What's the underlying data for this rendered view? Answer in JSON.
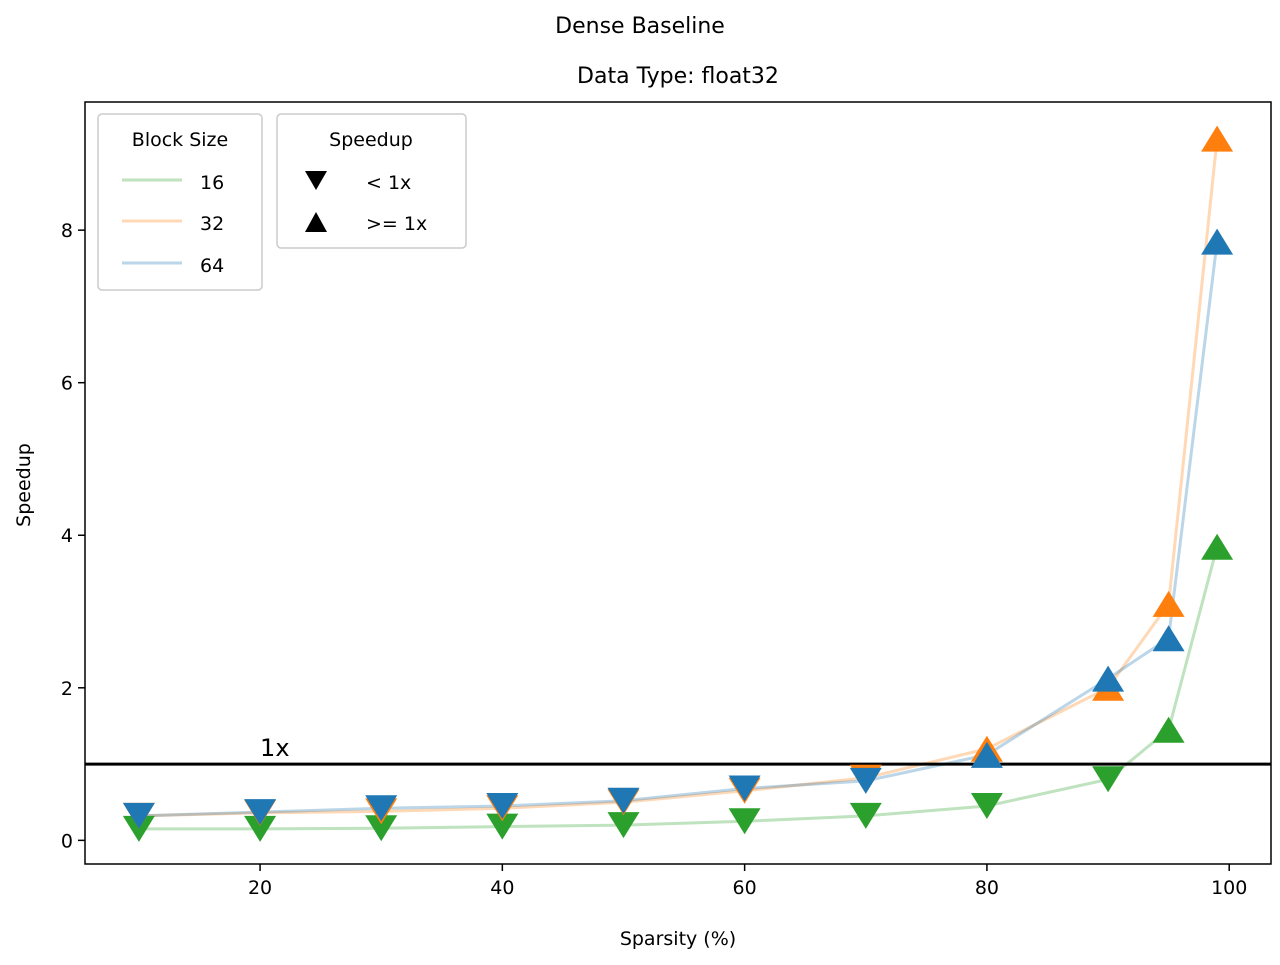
{
  "chart_data": {
    "type": "line",
    "suptitle": "Dense Baseline",
    "title": "Data Type: float32",
    "xlabel": "Sparsity (%)",
    "ylabel": "Speedup",
    "xlim": [
      5.55,
      103.45
    ],
    "ylim": [
      -0.31,
      9.68
    ],
    "xticks": [
      20,
      40,
      60,
      80,
      100
    ],
    "yticks": [
      0,
      2,
      4,
      6,
      8
    ],
    "grid": false,
    "x": [
      10,
      20,
      30,
      40,
      50,
      60,
      70,
      80,
      90,
      95,
      99
    ],
    "series": [
      {
        "name": "16",
        "color": "#2ca02c",
        "values": [
          0.15,
          0.15,
          0.16,
          0.18,
          0.2,
          0.25,
          0.32,
          0.45,
          0.8,
          1.45,
          3.85
        ]
      },
      {
        "name": "32",
        "color": "#ff7f0e",
        "values": [
          0.32,
          0.36,
          0.38,
          0.42,
          0.5,
          0.65,
          0.82,
          1.2,
          2.0,
          3.1,
          9.2
        ]
      },
      {
        "name": "64",
        "color": "#1f77b4",
        "values": [
          0.32,
          0.37,
          0.42,
          0.45,
          0.52,
          0.68,
          0.78,
          1.12,
          2.12,
          2.65,
          7.85
        ]
      }
    ],
    "reference_line": {
      "y": 1,
      "label": "1x"
    },
    "legends": [
      {
        "title": "Block Size",
        "entries": [
          "16",
          "32",
          "64"
        ]
      },
      {
        "title": "Speedup",
        "entries": [
          {
            "marker": "triangle-down",
            "label": "< 1x"
          },
          {
            "marker": "triangle-up",
            "label": ">= 1x"
          }
        ]
      }
    ]
  }
}
